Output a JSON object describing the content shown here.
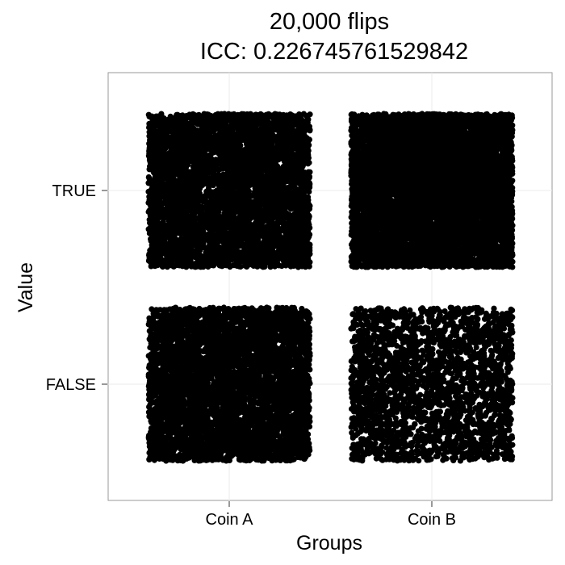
{
  "chart_data": {
    "type": "scatter",
    "title": "20,000 flips",
    "subtitle": "ICC: 0.226745761529842",
    "xlabel": "Groups",
    "ylabel": "Value",
    "categories": [
      "Coin A",
      "Coin B"
    ],
    "y_categories": [
      "FALSE",
      "TRUE"
    ],
    "jitter": true,
    "grid": true,
    "point_color": "#000000",
    "counts": [
      {
        "group": "Coin A",
        "value": "TRUE",
        "n": 5000
      },
      {
        "group": "Coin A",
        "value": "FALSE",
        "n": 5000
      },
      {
        "group": "Coin B",
        "value": "TRUE",
        "n": 7500
      },
      {
        "group": "Coin B",
        "value": "FALSE",
        "n": 2500
      }
    ]
  }
}
